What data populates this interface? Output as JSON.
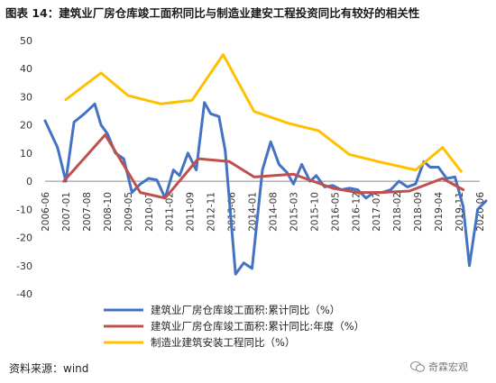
{
  "title": "图表 14：建筑业厂房仓库竣工面积同比与制造业建安工程投资同比有较好的相关性",
  "source_text": "资料来源：wind",
  "watermark_text": "奇霖宏观",
  "chart_data": {
    "type": "line",
    "title": "",
    "xlabel": "",
    "ylabel": "",
    "ylim": [
      -40,
      50
    ],
    "yticks": [
      -40,
      -30,
      -20,
      -10,
      0,
      10,
      20,
      30,
      40,
      50
    ],
    "x_tick_labels": [
      "2006-06",
      "2007-01",
      "2007-08",
      "2008-10",
      "2009-05",
      "2010-07",
      "2011-02",
      "2011-09",
      "2012-11",
      "2013-06",
      "2014-01",
      "2014-08",
      "2015-03",
      "2015-10",
      "2016-05",
      "2016-12",
      "2017-07",
      "2018-02",
      "2018-09",
      "2019-04",
      "2019-11",
      "2020-06"
    ],
    "grid": false,
    "legend_position": "bottom-left",
    "series": [
      {
        "name": "建筑业厂房仓库竣工面积:累计同比（%）",
        "color": "#4472c4",
        "points": [
          [
            0,
            21.5
          ],
          [
            0.6,
            12
          ],
          [
            1,
            0
          ],
          [
            1.4,
            21
          ],
          [
            1.9,
            24
          ],
          [
            2.4,
            27.5
          ],
          [
            2.7,
            20
          ],
          [
            3,
            17
          ],
          [
            3.4,
            10
          ],
          [
            3.8,
            8
          ],
          [
            4.2,
            -4
          ],
          [
            4.6,
            -1
          ],
          [
            5,
            1
          ],
          [
            5.4,
            0.5
          ],
          [
            5.8,
            -6
          ],
          [
            6.2,
            4
          ],
          [
            6.5,
            2
          ],
          [
            6.9,
            10
          ],
          [
            7.3,
            4
          ],
          [
            7.7,
            28
          ],
          [
            8,
            24
          ],
          [
            8.4,
            23
          ],
          [
            8.7,
            11
          ],
          [
            9.2,
            -33
          ],
          [
            9.6,
            -29
          ],
          [
            10,
            -31
          ],
          [
            10.5,
            4
          ],
          [
            10.9,
            14
          ],
          [
            11.3,
            6
          ],
          [
            11.7,
            3
          ],
          [
            12,
            -1
          ],
          [
            12.4,
            6
          ],
          [
            12.8,
            0
          ],
          [
            13.1,
            2
          ],
          [
            13.5,
            -2
          ],
          [
            13.9,
            -1.5
          ],
          [
            14.3,
            -3
          ],
          [
            14.7,
            -2.5
          ],
          [
            15.1,
            -3
          ],
          [
            15.5,
            -6
          ],
          [
            15.9,
            -4
          ],
          [
            16.3,
            -4
          ],
          [
            16.7,
            -3
          ],
          [
            17.1,
            0
          ],
          [
            17.5,
            -2
          ],
          [
            17.9,
            -1
          ],
          [
            18.3,
            7
          ],
          [
            18.6,
            5
          ],
          [
            19,
            5
          ],
          [
            19.4,
            1
          ],
          [
            19.8,
            1.5
          ],
          [
            20.2,
            -9
          ],
          [
            20.5,
            -30
          ],
          [
            20.9,
            -10
          ],
          [
            21.3,
            -7
          ]
        ]
      },
      {
        "name": "建筑业厂房仓库竣工面积:累计同比:年度（%）",
        "color": "#c0504d",
        "points": [
          [
            0.9,
            0
          ],
          [
            2.9,
            16.5
          ],
          [
            4.6,
            -4
          ],
          [
            5.8,
            -6
          ],
          [
            7.4,
            8
          ],
          [
            8.9,
            7
          ],
          [
            10.1,
            1.5
          ],
          [
            12,
            2.5
          ],
          [
            13.9,
            -2.5
          ],
          [
            15.1,
            -4
          ],
          [
            16.2,
            -4
          ],
          [
            17.6,
            -3.5
          ],
          [
            19.2,
            1
          ],
          [
            20.2,
            -3
          ]
        ]
      },
      {
        "name": "制造业建筑安装工程同比（%）",
        "color": "#ffc000",
        "points": [
          [
            1,
            29
          ],
          [
            2.7,
            38.5
          ],
          [
            4,
            30.5
          ],
          [
            5.6,
            27.5
          ],
          [
            7.1,
            28.8
          ],
          [
            8.6,
            45
          ],
          [
            10.1,
            24.8
          ],
          [
            11.8,
            20.5
          ],
          [
            13.2,
            18
          ],
          [
            14.7,
            9.5
          ],
          [
            16.1,
            7
          ],
          [
            17.9,
            4
          ],
          [
            19.2,
            12
          ],
          [
            20.1,
            3.5
          ]
        ]
      }
    ]
  }
}
